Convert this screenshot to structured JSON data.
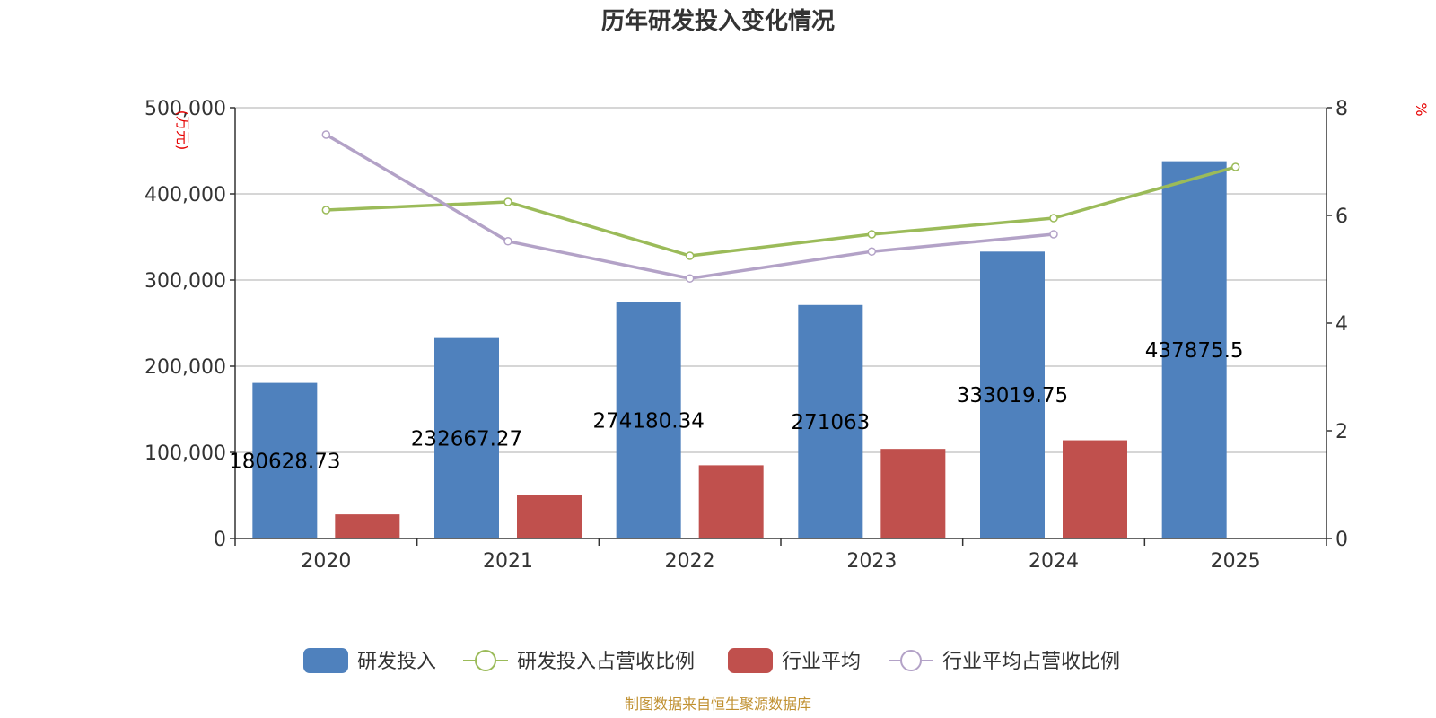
{
  "chart_data": {
    "type": "bar",
    "title": "历年研发投入变化情况",
    "categories": [
      "2020",
      "2021",
      "2022",
      "2023",
      "2024",
      "2025"
    ],
    "left_axis": {
      "unit": "(万元)",
      "ylim": [
        0,
        500000
      ],
      "ticks": [
        0,
        100000,
        200000,
        300000,
        400000,
        500000
      ],
      "tick_labels": [
        "0",
        "100,000",
        "200,000",
        "300,000",
        "400,000",
        "500,000"
      ]
    },
    "right_axis": {
      "unit": "%",
      "ylim": [
        0,
        8
      ],
      "ticks": [
        0,
        2,
        4,
        6,
        8
      ],
      "tick_labels": [
        "0",
        "2",
        "4",
        "6",
        "8"
      ]
    },
    "series": [
      {
        "name": "研发投入",
        "type": "bar",
        "axis": "left",
        "color": "#4f81bd",
        "values": [
          180628.73,
          232667.27,
          274180.34,
          271063,
          333019.75,
          437875.5
        ],
        "labels": [
          "180628.73",
          "232667.27",
          "274180.34",
          "271063",
          "333019.75",
          "437875.5"
        ]
      },
      {
        "name": "研发投入占营收比例",
        "type": "line",
        "axis": "right",
        "color": "#9bbb59",
        "values": [
          6.1,
          6.25,
          5.25,
          5.65,
          5.95,
          6.9
        ]
      },
      {
        "name": "行业平均",
        "type": "bar",
        "axis": "left",
        "color": "#c0504d",
        "values": [
          28000,
          50000,
          85000,
          104000,
          114000,
          null
        ]
      },
      {
        "name": "行业平均占营收比例",
        "type": "line",
        "axis": "right",
        "color": "#b3a2c7",
        "values": [
          7.5,
          5.52,
          4.83,
          5.33,
          5.65,
          null
        ]
      }
    ],
    "grid": true,
    "legend_position": "bottom",
    "source_note": "制图数据来自恒生聚源数据库"
  }
}
